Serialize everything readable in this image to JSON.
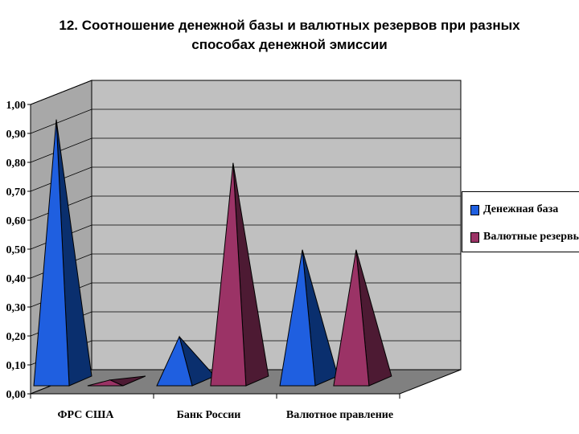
{
  "header": {
    "title_line1": "12. Соотношение денежной базы и валютных резервов при разных",
    "title_line2": "способах денежной эмиссии"
  },
  "chart_data": {
    "type": "bar",
    "style": "3d-pyramid",
    "categories": [
      "ФРС США",
      "Банк России",
      "Валютное правление"
    ],
    "series": [
      {
        "name": "Денежная база",
        "values": [
          0.97,
          0.22,
          0.52
        ],
        "color": "#1f5fe0",
        "side_color": "#0a2f6e"
      },
      {
        "name": "Валютные резервы",
        "values": [
          0.07,
          0.82,
          0.52
        ],
        "color": "#9b3366",
        "side_color": "#4d1a33"
      }
    ],
    "y_ticks": [
      "0,00",
      "0,10",
      "0,20",
      "0,30",
      "0,40",
      "0,50",
      "0,60",
      "0,70",
      "0,80",
      "0,90",
      "1,00"
    ],
    "ylim": [
      0,
      1
    ],
    "grid": true,
    "legend": {
      "placement": "right",
      "entries": [
        "Денежная база",
        "Валютные резервы"
      ]
    },
    "wall_color": "#c0c0c0",
    "floor_color": "#808080"
  }
}
